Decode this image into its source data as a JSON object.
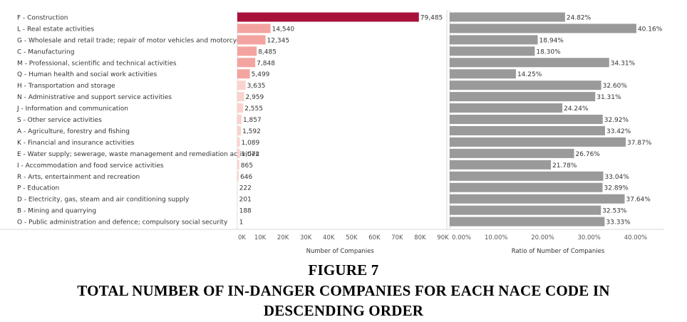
{
  "caption": {
    "figure_label": "FIGURE 7",
    "title_line1": "TOTAL NUMBER OF IN-DANGER COMPANIES FOR EACH NACE CODE IN",
    "title_line2": "DESCENDING ORDER"
  },
  "chart_data": [
    {
      "type": "bar",
      "orientation": "horizontal",
      "xlabel": "Number of Companies",
      "xlim": [
        0,
        90000
      ],
      "xticks": [
        "0K",
        "10K",
        "20K",
        "30K",
        "40K",
        "50K",
        "60K",
        "70K",
        "80K",
        "90K"
      ],
      "categories": [
        "F - Construction",
        "L - Real estate activities",
        "G - Wholesale and retail trade; repair of motor vehicles and motorcycles",
        "C - Manufacturing",
        "M - Professional, scientific and technical activities",
        "Q - Human health and social work activities",
        "H - Transportation and storage",
        "N - Administrative and support service activities",
        "J - Information and communication",
        "S - Other service activities",
        "A - Agriculture, forestry and fishing",
        "K - Financial and insurance activities",
        "E - Water supply; sewerage, waste management and remediation activities",
        "I - Accommodation and food service activities",
        "R - Arts, entertainment and recreation",
        "P - Education",
        "D - Electricity, gas, steam and air conditioning supply",
        "B - Mining and quarrying",
        "O - Public administration and defence; compulsory social security"
      ],
      "values": [
        79485,
        14540,
        12345,
        8485,
        7848,
        5499,
        3635,
        2959,
        2555,
        1857,
        1592,
        1089,
        1072,
        865,
        646,
        222,
        201,
        188,
        1
      ],
      "labels": [
        "79,485",
        "14,540",
        "12,345",
        "8,485",
        "7,848",
        "5,499",
        "3,635",
        "2,959",
        "2,555",
        "1,857",
        "1,592",
        "1,089",
        "1,072",
        "865",
        "646",
        "222",
        "201",
        "188",
        "1"
      ],
      "colors": {
        "max": "#a8123a",
        "high": "#f4a4a0",
        "low": "#fbd2cc",
        "zero": "#fde6e2"
      }
    },
    {
      "type": "bar",
      "orientation": "horizontal",
      "xlabel": "Ratio of Number of Companies",
      "xlim": [
        0,
        0.44
      ],
      "xticks": [
        "0.00%",
        "10.00%",
        "20.00%",
        "30.00%",
        "40.00%"
      ],
      "xtick_values": [
        0,
        0.1,
        0.2,
        0.3,
        0.4
      ],
      "values": [
        24.82,
        40.16,
        18.94,
        18.3,
        34.31,
        14.25,
        32.6,
        31.31,
        24.24,
        32.92,
        33.42,
        37.87,
        26.76,
        21.78,
        33.04,
        32.89,
        37.64,
        32.53,
        33.33
      ],
      "labels": [
        "24.82%",
        "40.16%",
        "18.94%",
        "18.30%",
        "34.31%",
        "14.25%",
        "32.60%",
        "31.31%",
        "24.24%",
        "32.92%",
        "33.42%",
        "37.87%",
        "26.76%",
        "21.78%",
        "33.04%",
        "32.89%",
        "37.64%",
        "32.53%",
        "33.33%"
      ],
      "color": "#9a9a9a"
    }
  ]
}
